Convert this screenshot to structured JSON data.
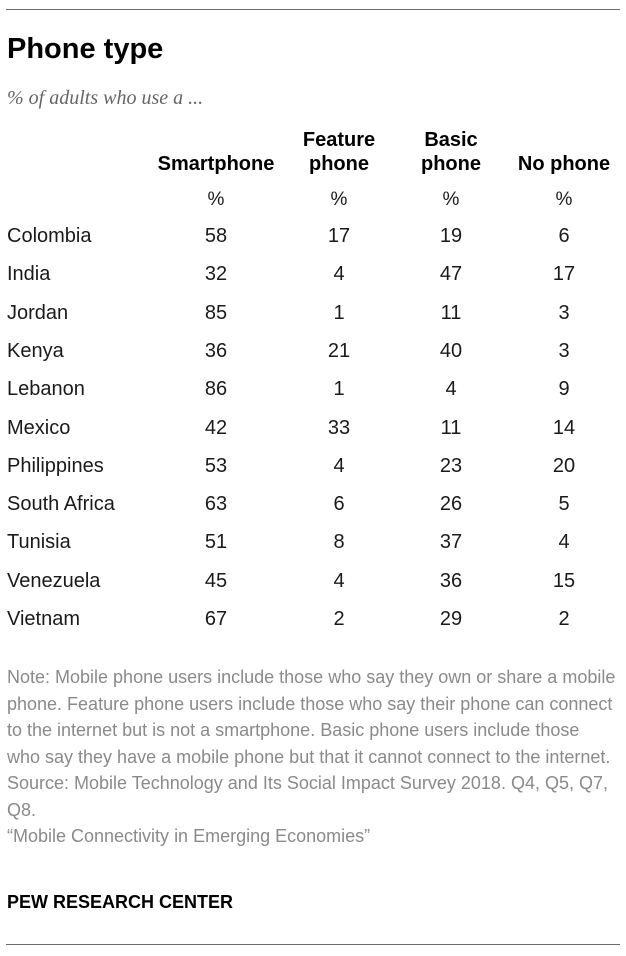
{
  "title": "Phone type",
  "subtitle": "% of adults who use a ...",
  "columns": [
    {
      "line1": "",
      "line2": "Smartphone",
      "unit": "%"
    },
    {
      "line1": "Feature",
      "line2": "phone",
      "unit": "%"
    },
    {
      "line1": "Basic",
      "line2": "phone",
      "unit": "%"
    },
    {
      "line1": "",
      "line2": "No phone",
      "unit": "%"
    }
  ],
  "rows": [
    {
      "country": "Colombia",
      "values": [
        "58",
        "17",
        "19",
        "6"
      ]
    },
    {
      "country": "India",
      "values": [
        "32",
        "4",
        "47",
        "17"
      ]
    },
    {
      "country": "Jordan",
      "values": [
        "85",
        "1",
        "11",
        "3"
      ]
    },
    {
      "country": "Kenya",
      "values": [
        "36",
        "21",
        "40",
        "3"
      ]
    },
    {
      "country": "Lebanon",
      "values": [
        "86",
        "1",
        "4",
        "9"
      ]
    },
    {
      "country": "Mexico",
      "values": [
        "42",
        "33",
        "11",
        "14"
      ]
    },
    {
      "country": "Philippines",
      "values": [
        "53",
        "4",
        "23",
        "20"
      ]
    },
    {
      "country": "South Africa",
      "values": [
        "63",
        "6",
        "26",
        "5"
      ]
    },
    {
      "country": "Tunisia",
      "values": [
        "51",
        "8",
        "37",
        "4"
      ]
    },
    {
      "country": "Venezuela",
      "values": [
        "45",
        "4",
        "36",
        "15"
      ]
    },
    {
      "country": "Vietnam",
      "values": [
        "67",
        "2",
        "29",
        "2"
      ]
    }
  ],
  "chart_data": {
    "type": "table",
    "title": "Phone type",
    "subtitle": "% of adults who use a ...",
    "columns": [
      "Smartphone",
      "Feature phone",
      "Basic phone",
      "No phone"
    ],
    "unit": "%",
    "categories": [
      "Colombia",
      "India",
      "Jordan",
      "Kenya",
      "Lebanon",
      "Mexico",
      "Philippines",
      "South Africa",
      "Tunisia",
      "Venezuela",
      "Vietnam"
    ],
    "series": [
      {
        "name": "Smartphone",
        "values": [
          58,
          32,
          85,
          36,
          86,
          42,
          53,
          63,
          51,
          45,
          67
        ]
      },
      {
        "name": "Feature phone",
        "values": [
          17,
          4,
          1,
          21,
          1,
          33,
          4,
          6,
          8,
          4,
          2
        ]
      },
      {
        "name": "Basic phone",
        "values": [
          19,
          47,
          11,
          40,
          4,
          11,
          23,
          26,
          37,
          36,
          29
        ]
      },
      {
        "name": "No phone",
        "values": [
          6,
          17,
          3,
          3,
          9,
          14,
          20,
          5,
          4,
          15,
          2
        ]
      }
    ]
  },
  "note": "Note: Mobile phone users include those who say they own or share a mobile phone. Feature phone users include those who say their phone can connect to the internet but is not a smartphone. Basic phone users include those who say they have a mobile phone but that it cannot connect to the internet.",
  "source": "Source: Mobile Technology and Its Social Impact Survey 2018. Q4, Q5, Q7, Q8.",
  "report": "“Mobile Connectivity in Emerging Economies”",
  "brand": "PEW RESEARCH CENTER"
}
